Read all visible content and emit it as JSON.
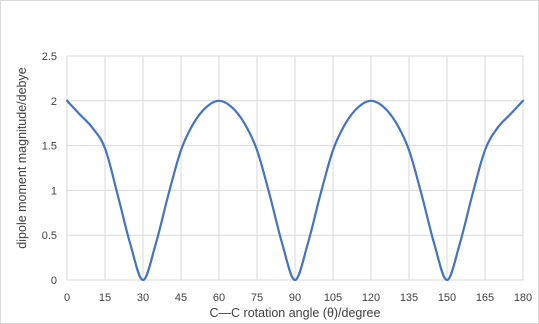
{
  "chart_data": {
    "type": "line",
    "title": "",
    "xlabel": "C—C rotation angle (θ)/degree",
    "ylabel": "dipole moment magnitude/debye",
    "xlim": [
      0,
      180
    ],
    "ylim": [
      0,
      2.5
    ],
    "x_ticks": [
      "0",
      "15",
      "30",
      "45",
      "60",
      "75",
      "90",
      "105",
      "120",
      "135",
      "150",
      "165",
      "180"
    ],
    "y_ticks": [
      "0",
      "0.5",
      "1",
      "1.5",
      "2",
      "2.5"
    ],
    "grid": true,
    "legend": "none",
    "series": [
      {
        "color": "#4472c4",
        "x": [
          0,
          5,
          10,
          15,
          20,
          25,
          30,
          35,
          40,
          45,
          50,
          55,
          60,
          65,
          70,
          75,
          80,
          85,
          90,
          95,
          100,
          105,
          110,
          115,
          120,
          125,
          130,
          135,
          140,
          145,
          150,
          155,
          160,
          165,
          170,
          175,
          180
        ],
        "y": [
          2.0,
          1.85,
          1.7,
          1.47,
          0.95,
          0.4,
          0.0,
          0.4,
          0.95,
          1.45,
          1.75,
          1.93,
          2.0,
          1.93,
          1.75,
          1.45,
          0.95,
          0.4,
          0.0,
          0.4,
          0.95,
          1.45,
          1.75,
          1.93,
          2.0,
          1.93,
          1.75,
          1.45,
          0.95,
          0.4,
          0.0,
          0.4,
          0.95,
          1.45,
          1.7,
          1.85,
          2.0
        ]
      }
    ]
  }
}
